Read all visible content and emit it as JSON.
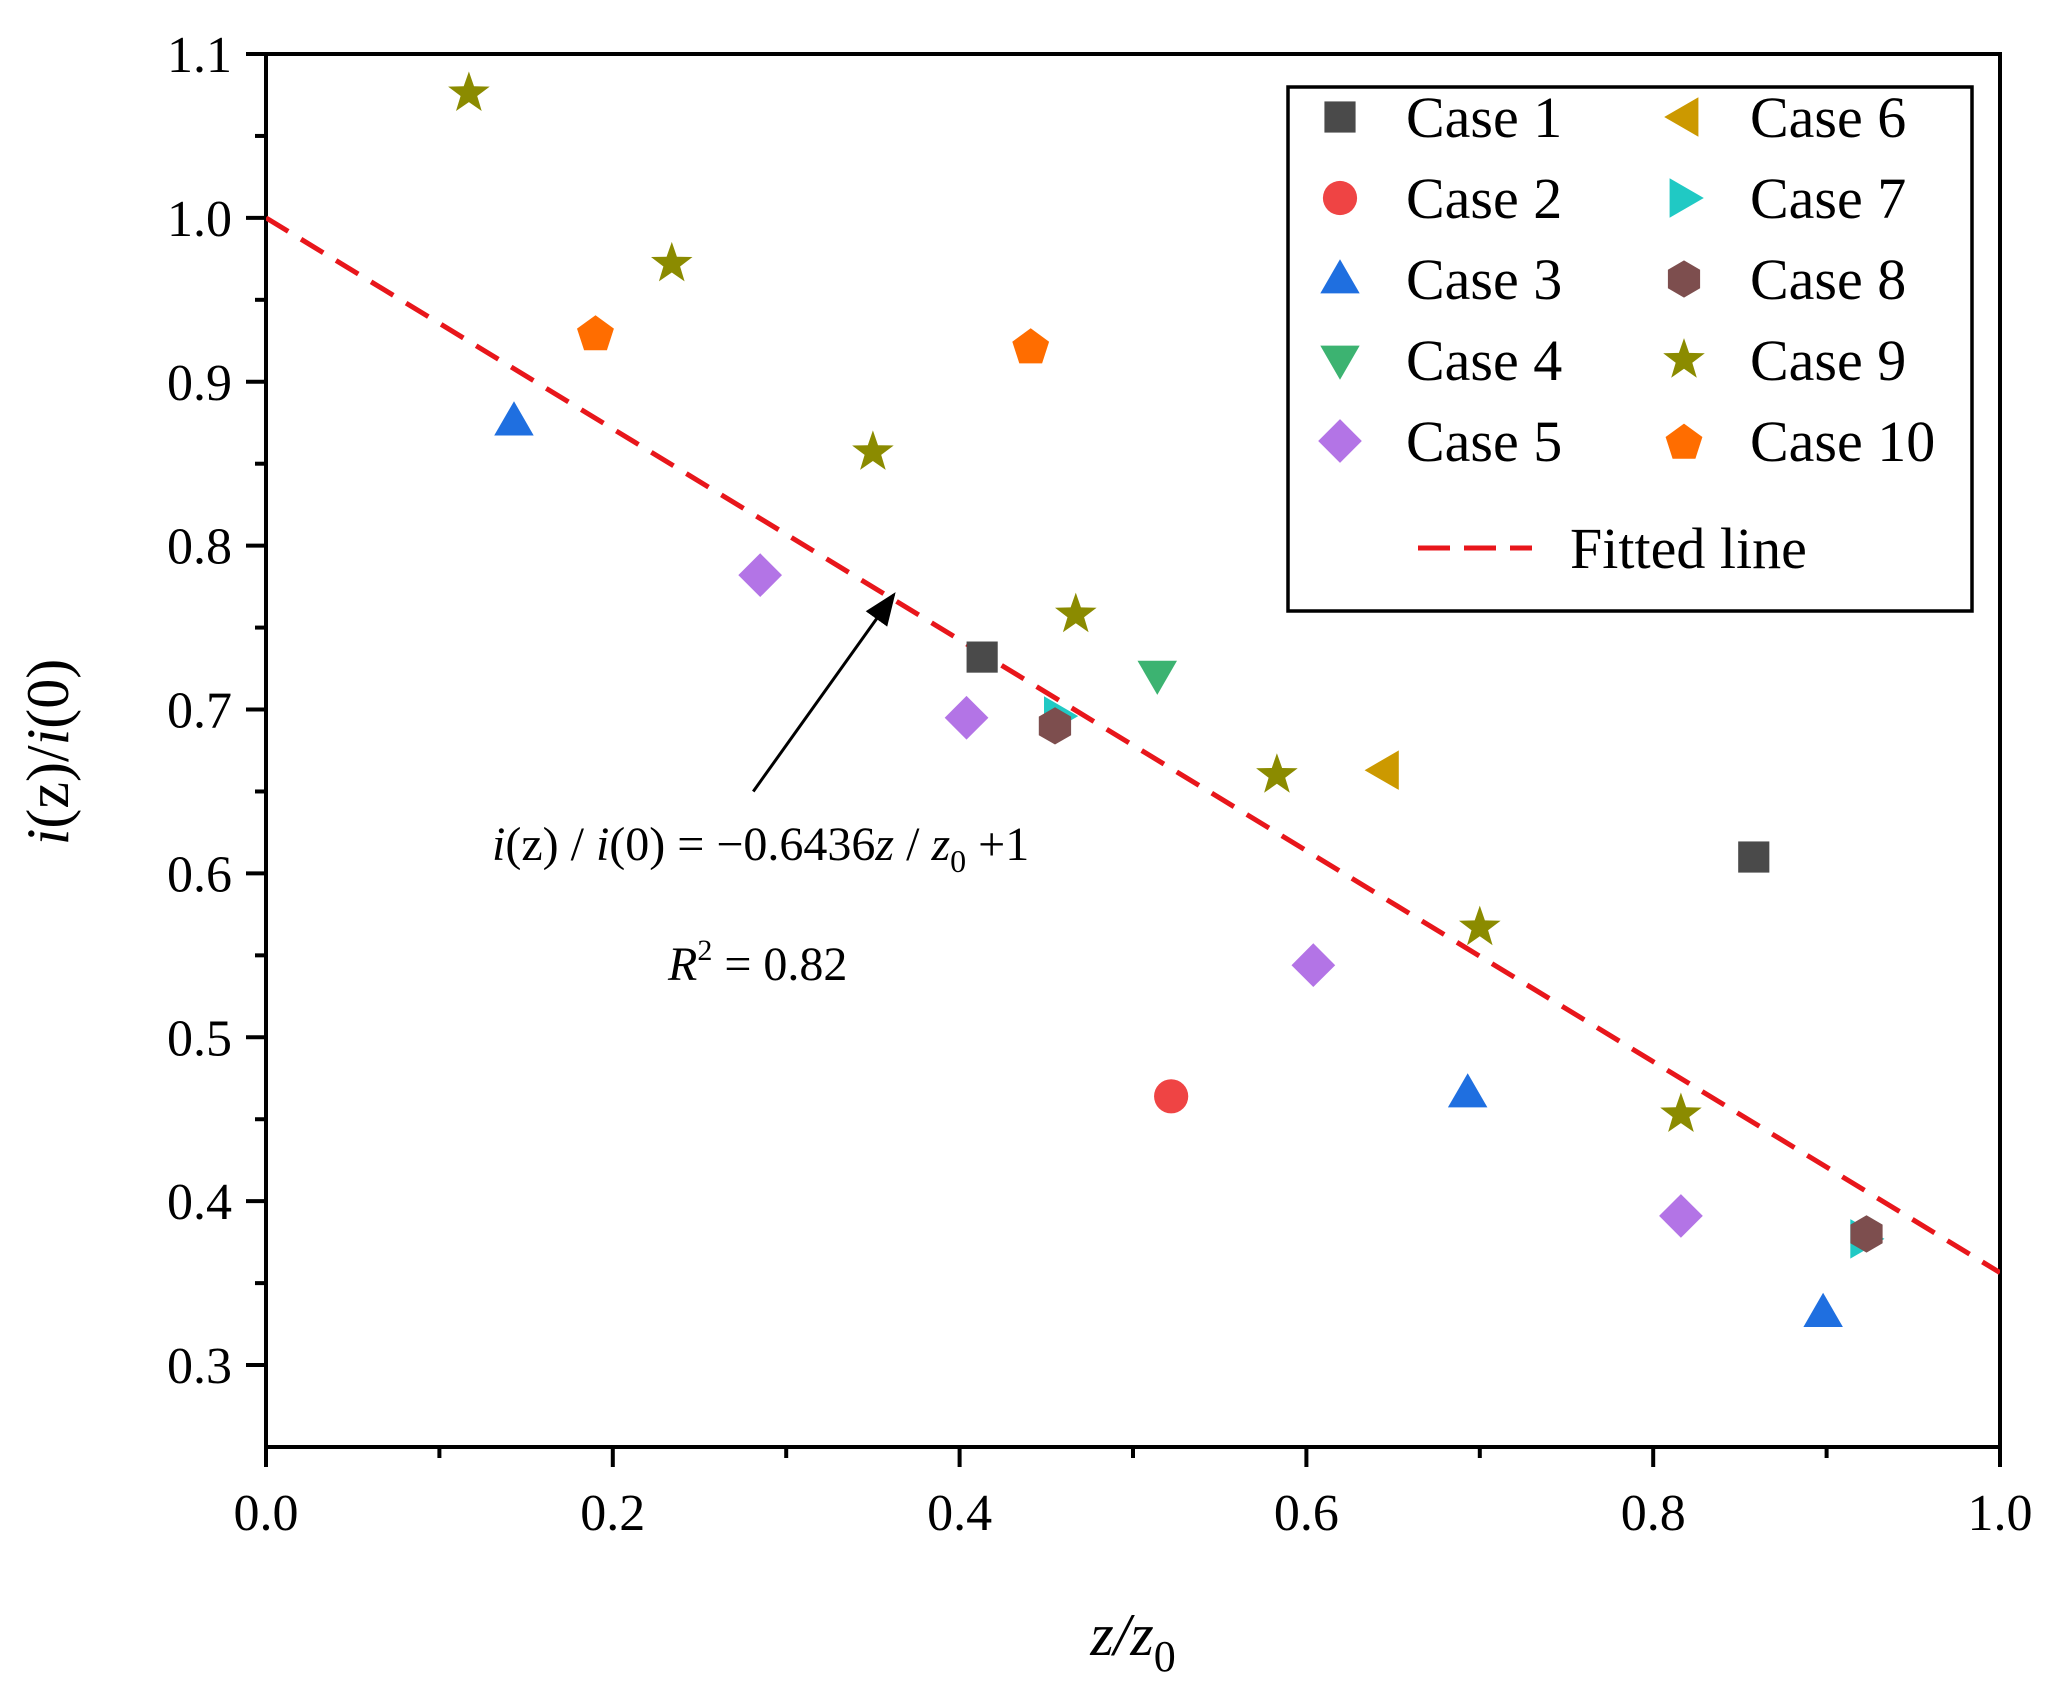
{
  "chart_data": {
    "type": "scatter",
    "title": "",
    "xlabel": "z/z0",
    "xlabel_parts": {
      "main": "z/z",
      "sub": "0"
    },
    "ylabel": "i(z)/i(0)",
    "ylabel_parts": {
      "i1": "i",
      "p1": "(z)/",
      "i2": "i",
      "p2": "(0)"
    },
    "xlim": [
      0.0,
      1.0
    ],
    "ylim": [
      0.25,
      1.1
    ],
    "x_ticks": [
      0.0,
      0.2,
      0.4,
      0.6,
      0.8,
      1.0
    ],
    "x_tick_labels": [
      "0.0",
      "0.2",
      "0.4",
      "0.6",
      "0.8",
      "1.0"
    ],
    "y_ticks": [
      0.3,
      0.4,
      0.5,
      0.6,
      0.7,
      0.8,
      0.9,
      1.0,
      1.1
    ],
    "y_tick_labels": [
      "0.3",
      "0.4",
      "0.5",
      "0.6",
      "0.7",
      "0.8",
      "0.9",
      "1.0",
      "1.1"
    ],
    "grid": false,
    "legend_position": "top-right",
    "series": [
      {
        "name": "Case 1",
        "marker": "square",
        "color": "#4a4a4a",
        "points": [
          [
            0.413,
            0.732
          ],
          [
            0.858,
            0.61
          ]
        ]
      },
      {
        "name": "Case 2",
        "marker": "circle",
        "color": "#ef4444",
        "points": [
          [
            0.522,
            0.464
          ]
        ]
      },
      {
        "name": "Case 3",
        "marker": "triangle-up",
        "color": "#1f6fe0",
        "points": [
          [
            0.143,
            0.876
          ],
          [
            0.693,
            0.466
          ],
          [
            0.898,
            0.332
          ]
        ]
      },
      {
        "name": "Case 4",
        "marker": "triangle-down",
        "color": "#3cb371",
        "points": [
          [
            0.514,
            0.721
          ]
        ]
      },
      {
        "name": "Case 5",
        "marker": "diamond",
        "color": "#b374e6",
        "points": [
          [
            0.285,
            0.782
          ],
          [
            0.404,
            0.695
          ],
          [
            0.604,
            0.544
          ],
          [
            0.816,
            0.391
          ]
        ]
      },
      {
        "name": "Case 6",
        "marker": "triangle-left",
        "color": "#cc9900",
        "points": [
          [
            0.645,
            0.663
          ]
        ]
      },
      {
        "name": "Case 7",
        "marker": "triangle-right",
        "color": "#20c9c4",
        "points": [
          [
            0.457,
            0.696
          ],
          [
            0.922,
            0.377
          ]
        ]
      },
      {
        "name": "Case 8",
        "marker": "hexagon",
        "color": "#7d4e4e",
        "points": [
          [
            0.455,
            0.69
          ],
          [
            0.923,
            0.38
          ]
        ]
      },
      {
        "name": "Case 9",
        "marker": "star",
        "color": "#8b8b00",
        "points": [
          [
            0.117,
            1.076
          ],
          [
            0.234,
            0.972
          ],
          [
            0.35,
            0.857
          ],
          [
            0.467,
            0.758
          ],
          [
            0.583,
            0.66
          ],
          [
            0.7,
            0.567
          ],
          [
            0.816,
            0.453
          ]
        ]
      },
      {
        "name": "Case 10",
        "marker": "pentagon",
        "color": "#ff6d00",
        "points": [
          [
            0.19,
            0.93
          ],
          [
            0.441,
            0.922
          ]
        ]
      }
    ],
    "fitted_line": {
      "name": "Fitted line",
      "slope": -0.6436,
      "intercept": 1.0,
      "color": "#e8161b"
    },
    "annotations": {
      "equation": {
        "i1": "i",
        "p1": "(z) / ",
        "i2": "i",
        "p2": "(0) = −0.6436",
        "z": "z",
        "p3": " / ",
        "z0": "z",
        "sub": "0",
        "p4": " +1"
      },
      "r_squared": {
        "r": "R",
        "sup": "2",
        "value": " = 0.82"
      },
      "arrow_target": [
        0.362,
        0.77
      ],
      "arrow_tail": [
        0.281,
        0.65
      ]
    }
  }
}
